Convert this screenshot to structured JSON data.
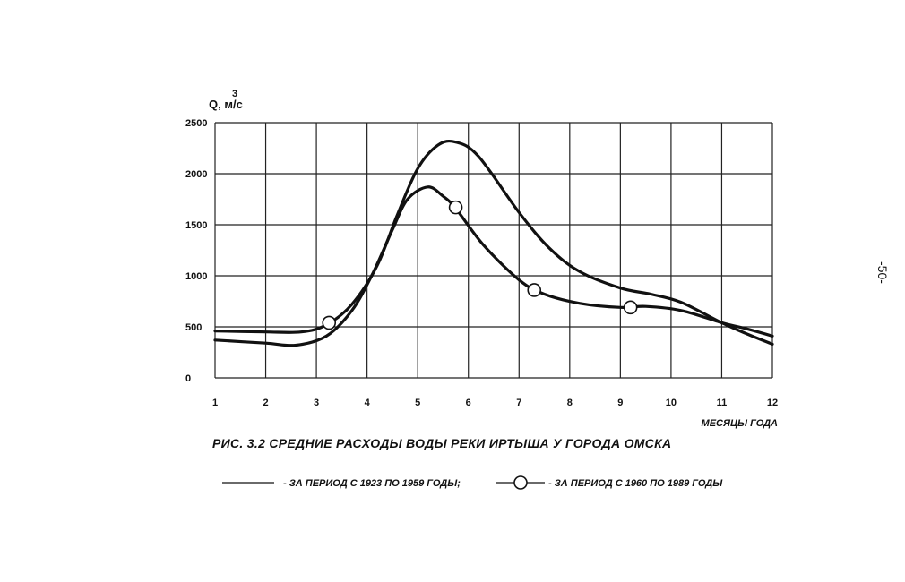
{
  "page_number": "-50-",
  "chart_data": {
    "type": "line",
    "title": "РИС. 3.2 СРЕДНИЕ РАСХОДЫ ВОДЫ РЕКИ ИРТЫША У ГОРОДА ОМСКА",
    "ylabel": "Q, м/с",
    "ylabel_superscript": "3",
    "xlabel": "МЕСЯЦЫ ГОДА",
    "x_ticks": [
      "1",
      "2",
      "3",
      "4",
      "5",
      "6",
      "7",
      "8",
      "9",
      "10",
      "11",
      "12"
    ],
    "y_ticks": [
      "0",
      "500",
      "1000",
      "1500",
      "2000",
      "2500"
    ],
    "xlim": [
      1,
      12
    ],
    "ylim": [
      0,
      2500
    ],
    "grid": true,
    "series": [
      {
        "name": "- ЗА ПЕРИОД С 1923 ПО 1959 ГОДЫ;",
        "marker": "none",
        "x": [
          1,
          2,
          2.7,
          3.2,
          3.7,
          4.2,
          4.6,
          5.0,
          5.4,
          5.75,
          6.2,
          7.0,
          7.6,
          8.2,
          9.0,
          9.6,
          10.2,
          11.0,
          11.5,
          12.0
        ],
        "y": [
          460,
          450,
          450,
          520,
          720,
          1100,
          1600,
          2050,
          2280,
          2310,
          2170,
          1620,
          1270,
          1040,
          880,
          820,
          740,
          540,
          430,
          330
        ]
      },
      {
        "name": "- ЗА ПЕРИОД С 1960 ПО 1989 ГОДЫ",
        "marker": "circle",
        "x": [
          1,
          2,
          2.6,
          3.2,
          3.7,
          4.1,
          4.5,
          4.8,
          5.2,
          5.5,
          5.75,
          6.3,
          7.0,
          7.5,
          8.2,
          9.0,
          9.5,
          10.2,
          11.0,
          11.5,
          12.0
        ],
        "y": [
          370,
          340,
          320,
          410,
          660,
          1010,
          1450,
          1750,
          1870,
          1780,
          1660,
          1300,
          960,
          820,
          730,
          690,
          700,
          660,
          540,
          480,
          410
        ],
        "markers_x": [
          3.25,
          5.75,
          7.3,
          9.2
        ],
        "markers_y": [
          540,
          1670,
          860,
          690
        ]
      }
    ]
  }
}
